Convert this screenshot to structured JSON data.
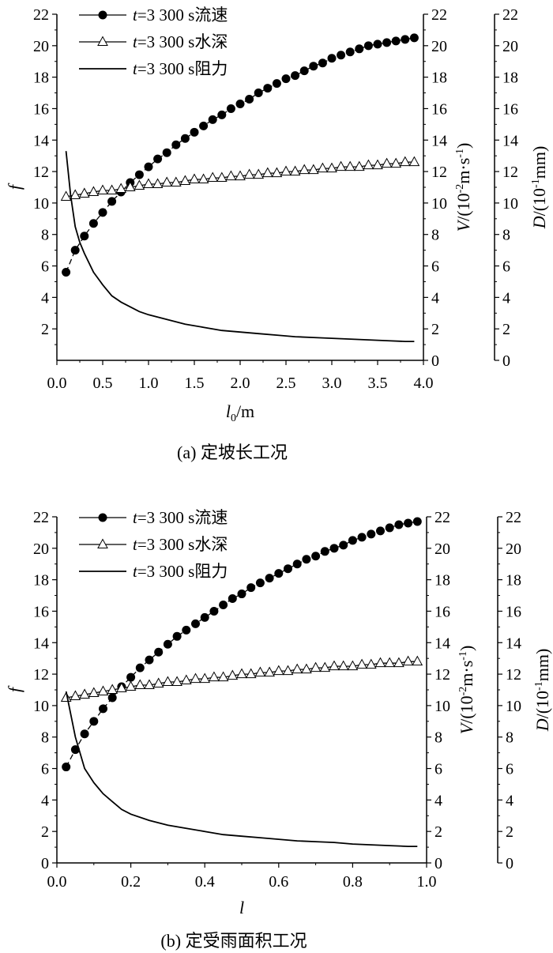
{
  "chart_data": [
    {
      "type": "line",
      "caption": "(a) 定坡长工况",
      "xlabel": "l0/m",
      "xlabel_parts": {
        "main": "l",
        "sub": "0",
        "tail": "/m"
      },
      "ylabel": "f",
      "y2label": "V/(10-2m·s-1)",
      "y2label_parts": {
        "a": "V",
        "b": "/(10",
        "sup1": "-2",
        "c": "m·s",
        "sup2": "-1",
        "d": ")"
      },
      "y3label": "D/(10-1mm)",
      "y3label_parts": {
        "a": "D",
        "b": "/(10",
        "sup1": "-1",
        "c": "mm)"
      },
      "xlim": [
        0,
        4
      ],
      "ylim": [
        0,
        22
      ],
      "xticks": [
        "0.0",
        "0.5",
        "1.0",
        "1.5",
        "2.0",
        "2.5",
        "3.0",
        "3.5",
        "4.0"
      ],
      "yticks": [
        "2",
        "4",
        "6",
        "8",
        "10",
        "12",
        "14",
        "16",
        "18",
        "20",
        "22"
      ],
      "y2ticks": [
        "0",
        "2",
        "4",
        "6",
        "8",
        "10",
        "12",
        "14",
        "16",
        "18",
        "20",
        "22"
      ],
      "y3ticks": [
        "0",
        "2",
        "4",
        "6",
        "8",
        "10",
        "12",
        "14",
        "16",
        "18",
        "20",
        "22"
      ],
      "legend_position": "top-left",
      "series": [
        {
          "name": "t=3 300 s流速",
          "name_parts": {
            "italic": "t",
            "rest": "=3 300 s流速"
          },
          "marker": "filled-circle",
          "line": "dashed",
          "x": [
            0.1,
            0.2,
            0.3,
            0.4,
            0.5,
            0.6,
            0.7,
            0.8,
            0.9,
            1.0,
            1.1,
            1.2,
            1.3,
            1.4,
            1.5,
            1.6,
            1.7,
            1.8,
            1.9,
            2.0,
            2.1,
            2.2,
            2.3,
            2.4,
            2.5,
            2.6,
            2.7,
            2.8,
            2.9,
            3.0,
            3.1,
            3.2,
            3.3,
            3.4,
            3.5,
            3.6,
            3.7,
            3.8,
            3.9
          ],
          "values": [
            5.6,
            7.0,
            7.9,
            8.7,
            9.4,
            10.1,
            10.7,
            11.3,
            11.8,
            12.3,
            12.8,
            13.2,
            13.7,
            14.1,
            14.5,
            14.9,
            15.3,
            15.6,
            16.0,
            16.3,
            16.6,
            17.0,
            17.3,
            17.6,
            17.9,
            18.1,
            18.4,
            18.7,
            18.9,
            19.2,
            19.4,
            19.6,
            19.8,
            20.0,
            20.1,
            20.2,
            20.3,
            20.4,
            20.5
          ]
        },
        {
          "name": "t=3 300 s水深",
          "name_parts": {
            "italic": "t",
            "rest": "=3 300 s水深"
          },
          "marker": "open-triangle",
          "line": "solid",
          "x": [
            0.1,
            0.2,
            0.3,
            0.4,
            0.5,
            0.6,
            0.7,
            0.8,
            0.9,
            1.0,
            1.1,
            1.2,
            1.3,
            1.4,
            1.5,
            1.6,
            1.7,
            1.8,
            1.9,
            2.0,
            2.1,
            2.2,
            2.3,
            2.4,
            2.5,
            2.6,
            2.7,
            2.8,
            2.9,
            3.0,
            3.1,
            3.2,
            3.3,
            3.4,
            3.5,
            3.6,
            3.7,
            3.8,
            3.9
          ],
          "values": [
            10.4,
            10.5,
            10.6,
            10.7,
            10.8,
            10.8,
            10.9,
            11.0,
            11.1,
            11.2,
            11.2,
            11.3,
            11.3,
            11.4,
            11.5,
            11.5,
            11.6,
            11.6,
            11.7,
            11.7,
            11.8,
            11.8,
            11.9,
            11.9,
            12.0,
            12.0,
            12.1,
            12.1,
            12.2,
            12.2,
            12.3,
            12.3,
            12.3,
            12.4,
            12.4,
            12.5,
            12.5,
            12.6,
            12.6
          ]
        },
        {
          "name": "t=3 300 s阻力",
          "name_parts": {
            "italic": "t",
            "rest": "=3 300 s阻力"
          },
          "marker": "none",
          "line": "solid",
          "x": [
            0.1,
            0.15,
            0.2,
            0.25,
            0.3,
            0.4,
            0.5,
            0.6,
            0.7,
            0.8,
            0.9,
            1.0,
            1.2,
            1.4,
            1.6,
            1.8,
            2.0,
            2.2,
            2.4,
            2.6,
            2.8,
            3.0,
            3.2,
            3.4,
            3.6,
            3.8,
            3.9
          ],
          "values": [
            13.3,
            10.5,
            8.5,
            7.5,
            6.8,
            5.6,
            4.8,
            4.1,
            3.7,
            3.4,
            3.1,
            2.9,
            2.6,
            2.3,
            2.1,
            1.9,
            1.8,
            1.7,
            1.6,
            1.5,
            1.45,
            1.4,
            1.35,
            1.3,
            1.25,
            1.2,
            1.2
          ]
        }
      ]
    },
    {
      "type": "line",
      "caption": "(b) 定受雨面积工况",
      "xlabel": "l",
      "xlabel_parts": {
        "main": "l",
        "sub": "",
        "tail": ""
      },
      "ylabel": "f",
      "y2label": "V/(10-2m·s-1)",
      "y2label_parts": {
        "a": "V",
        "b": "/(10",
        "sup1": "-2",
        "c": "m·s",
        "sup2": "-1",
        "d": ")"
      },
      "y3label": "D/(10-1mm)",
      "y3label_parts": {
        "a": "D",
        "b": "/(10",
        "sup1": "-1",
        "c": "mm)"
      },
      "xlim": [
        0,
        1
      ],
      "ylim": [
        0,
        22
      ],
      "xticks": [
        "0.0",
        "0.2",
        "0.4",
        "0.6",
        "0.8",
        "1.0"
      ],
      "yticks": [
        "0",
        "2",
        "4",
        "6",
        "8",
        "10",
        "12",
        "14",
        "16",
        "18",
        "20",
        "22"
      ],
      "y2ticks": [
        "0",
        "2",
        "4",
        "6",
        "8",
        "10",
        "12",
        "14",
        "16",
        "18",
        "20",
        "22"
      ],
      "y3ticks": [
        "0",
        "2",
        "4",
        "6",
        "8",
        "10",
        "12",
        "14",
        "16",
        "18",
        "20",
        "22"
      ],
      "legend_position": "top-left",
      "series": [
        {
          "name": "t=3 300 s流速",
          "name_parts": {
            "italic": "t",
            "rest": "=3 300 s流速"
          },
          "marker": "filled-circle",
          "line": "dashed",
          "x": [
            0.025,
            0.05,
            0.075,
            0.1,
            0.125,
            0.15,
            0.175,
            0.2,
            0.225,
            0.25,
            0.275,
            0.3,
            0.325,
            0.35,
            0.375,
            0.4,
            0.425,
            0.45,
            0.475,
            0.5,
            0.525,
            0.55,
            0.575,
            0.6,
            0.625,
            0.65,
            0.675,
            0.7,
            0.725,
            0.75,
            0.775,
            0.8,
            0.825,
            0.85,
            0.875,
            0.9,
            0.925,
            0.95,
            0.975
          ],
          "values": [
            6.1,
            7.2,
            8.2,
            9.0,
            9.8,
            10.5,
            11.2,
            11.8,
            12.4,
            12.9,
            13.4,
            13.9,
            14.4,
            14.8,
            15.2,
            15.6,
            16.0,
            16.4,
            16.8,
            17.1,
            17.5,
            17.8,
            18.1,
            18.4,
            18.7,
            19.0,
            19.3,
            19.5,
            19.8,
            20.0,
            20.2,
            20.5,
            20.7,
            20.9,
            21.1,
            21.3,
            21.5,
            21.6,
            21.7
          ]
        },
        {
          "name": "t=3 300 s水深",
          "name_parts": {
            "italic": "t",
            "rest": "=3 300 s水深"
          },
          "marker": "open-triangle",
          "line": "solid",
          "x": [
            0.025,
            0.05,
            0.075,
            0.1,
            0.125,
            0.15,
            0.175,
            0.2,
            0.225,
            0.25,
            0.275,
            0.3,
            0.325,
            0.35,
            0.375,
            0.4,
            0.425,
            0.45,
            0.475,
            0.5,
            0.525,
            0.55,
            0.575,
            0.6,
            0.625,
            0.65,
            0.675,
            0.7,
            0.725,
            0.75,
            0.775,
            0.8,
            0.825,
            0.85,
            0.875,
            0.9,
            0.925,
            0.95,
            0.975
          ],
          "values": [
            10.5,
            10.6,
            10.7,
            10.8,
            10.9,
            11.0,
            11.1,
            11.2,
            11.3,
            11.3,
            11.4,
            11.5,
            11.5,
            11.6,
            11.7,
            11.7,
            11.8,
            11.8,
            11.9,
            12.0,
            12.0,
            12.1,
            12.1,
            12.2,
            12.2,
            12.3,
            12.3,
            12.4,
            12.4,
            12.5,
            12.5,
            12.5,
            12.6,
            12.6,
            12.7,
            12.7,
            12.7,
            12.8,
            12.8
          ]
        },
        {
          "name": "t=3 300 s阻力",
          "name_parts": {
            "italic": "t",
            "rest": "=3 300 s阻力"
          },
          "marker": "none",
          "line": "solid",
          "x": [
            0.025,
            0.05,
            0.075,
            0.1,
            0.125,
            0.15,
            0.175,
            0.2,
            0.25,
            0.3,
            0.35,
            0.4,
            0.45,
            0.5,
            0.55,
            0.6,
            0.65,
            0.7,
            0.75,
            0.8,
            0.85,
            0.9,
            0.95,
            0.975
          ],
          "values": [
            10.9,
            8.0,
            6.0,
            5.1,
            4.4,
            3.9,
            3.4,
            3.1,
            2.7,
            2.4,
            2.2,
            2.0,
            1.8,
            1.7,
            1.6,
            1.5,
            1.4,
            1.35,
            1.3,
            1.2,
            1.15,
            1.1,
            1.05,
            1.05
          ]
        }
      ]
    }
  ]
}
